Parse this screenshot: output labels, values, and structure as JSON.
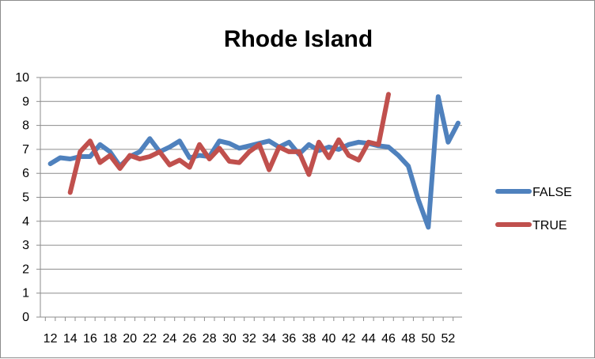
{
  "chart_data": {
    "type": "line",
    "title": "Rhode Island",
    "xlabel": "",
    "ylabel": "",
    "ylim": [
      0,
      10
    ],
    "yticks": [
      "0",
      "1",
      "2",
      "3",
      "4",
      "5",
      "6",
      "7",
      "8",
      "9",
      "10"
    ],
    "xticks": [
      "12",
      "14",
      "16",
      "18",
      "20",
      "22",
      "24",
      "26",
      "28",
      "30",
      "32",
      "34",
      "36",
      "38",
      "40",
      "42",
      "44",
      "46",
      "48",
      "50",
      "52"
    ],
    "grid": "horizontal",
    "legend_position": "right",
    "series": [
      {
        "name": "FALSE",
        "color": "#4f81bd",
        "points": [
          [
            12,
            6.4
          ],
          [
            13,
            6.65
          ],
          [
            14,
            6.6
          ],
          [
            15,
            6.7
          ],
          [
            16,
            6.7
          ],
          [
            17,
            7.2
          ],
          [
            18,
            6.9
          ],
          [
            19,
            6.3
          ],
          [
            20,
            6.7
          ],
          [
            21,
            6.9
          ],
          [
            22,
            7.45
          ],
          [
            23,
            6.9
          ],
          [
            24,
            7.1
          ],
          [
            25,
            7.35
          ],
          [
            26,
            6.65
          ],
          [
            27,
            6.75
          ],
          [
            28,
            6.7
          ],
          [
            29,
            7.35
          ],
          [
            30,
            7.25
          ],
          [
            31,
            7.05
          ],
          [
            32,
            7.15
          ],
          [
            33,
            7.25
          ],
          [
            34,
            7.35
          ],
          [
            35,
            7.1
          ],
          [
            36,
            7.3
          ],
          [
            37,
            6.8
          ],
          [
            38,
            7.2
          ],
          [
            39,
            6.95
          ],
          [
            40,
            7.1
          ],
          [
            41,
            7.0
          ],
          [
            42,
            7.2
          ],
          [
            43,
            7.3
          ],
          [
            44,
            7.25
          ],
          [
            45,
            7.15
          ],
          [
            46,
            7.1
          ],
          [
            47,
            6.75
          ],
          [
            48,
            6.3
          ],
          [
            49,
            4.9
          ],
          [
            50,
            3.75
          ],
          [
            51,
            9.2
          ],
          [
            52,
            7.3
          ],
          [
            53,
            8.1
          ]
        ]
      },
      {
        "name": "TRUE",
        "color": "#c0504d",
        "points": [
          [
            14,
            5.2
          ],
          [
            15,
            6.9
          ],
          [
            16,
            7.35
          ],
          [
            17,
            6.45
          ],
          [
            18,
            6.75
          ],
          [
            19,
            6.2
          ],
          [
            20,
            6.75
          ],
          [
            21,
            6.6
          ],
          [
            22,
            6.7
          ],
          [
            23,
            6.9
          ],
          [
            24,
            6.35
          ],
          [
            25,
            6.55
          ],
          [
            26,
            6.25
          ],
          [
            27,
            7.2
          ],
          [
            28,
            6.6
          ],
          [
            29,
            7.05
          ],
          [
            30,
            6.5
          ],
          [
            31,
            6.45
          ],
          [
            32,
            6.9
          ],
          [
            33,
            7.2
          ],
          [
            34,
            6.15
          ],
          [
            35,
            7.1
          ],
          [
            36,
            6.9
          ],
          [
            37,
            6.9
          ],
          [
            38,
            5.95
          ],
          [
            39,
            7.3
          ],
          [
            40,
            6.65
          ],
          [
            41,
            7.4
          ],
          [
            42,
            6.75
          ],
          [
            43,
            6.55
          ],
          [
            44,
            7.3
          ],
          [
            45,
            7.2
          ],
          [
            46,
            9.3
          ]
        ]
      }
    ]
  }
}
